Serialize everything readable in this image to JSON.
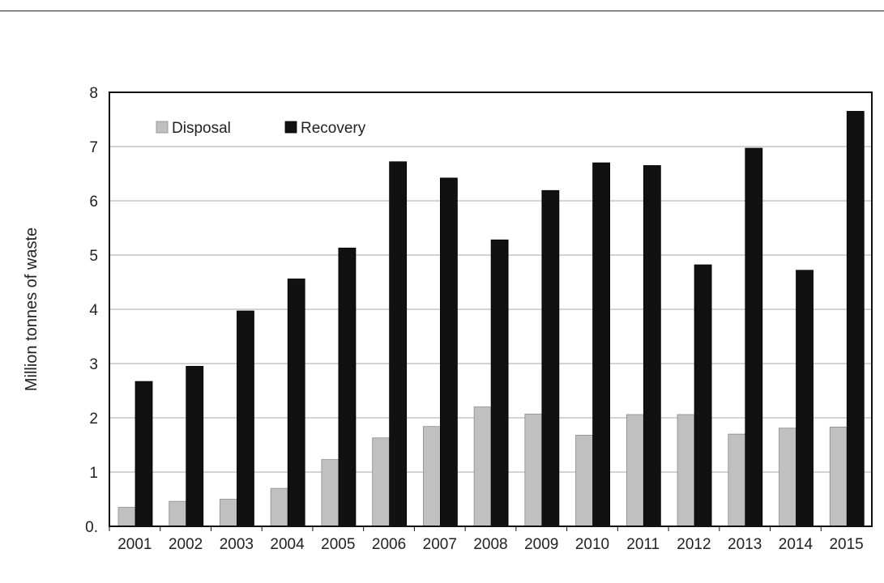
{
  "chart_data": {
    "type": "bar",
    "title": "",
    "xlabel": "",
    "ylabel": "Million tonnes of waste",
    "ylim": [
      0,
      8
    ],
    "yticks": [
      "0.",
      "1",
      "2",
      "3",
      "4",
      "5",
      "6",
      "7",
      "8"
    ],
    "grid": true,
    "legend_position": "top-left",
    "categories": [
      "2001",
      "2002",
      "2003",
      "2004",
      "2005",
      "2006",
      "2007",
      "2008",
      "2009",
      "2010",
      "2011",
      "2012",
      "2013",
      "2014",
      "2015"
    ],
    "series": [
      {
        "name": "Disposal",
        "color": "#c0c0c0",
        "values": [
          0.35,
          0.46,
          0.5,
          0.7,
          1.23,
          1.63,
          1.84,
          2.2,
          2.07,
          1.68,
          2.06,
          2.06,
          1.7,
          1.81,
          1.83
        ]
      },
      {
        "name": "Recovery",
        "color": "#111111",
        "values": [
          2.67,
          2.95,
          3.97,
          4.56,
          5.13,
          6.72,
          6.42,
          5.28,
          6.19,
          6.7,
          6.65,
          4.82,
          6.97,
          4.72,
          7.65
        ]
      }
    ]
  }
}
